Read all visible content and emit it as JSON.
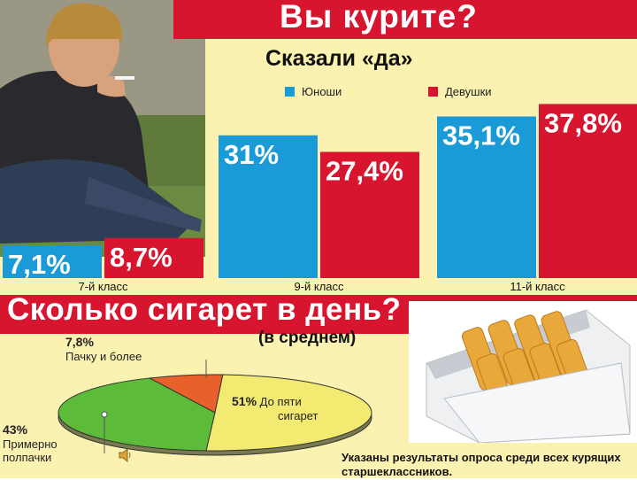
{
  "title": "Вы курите?",
  "subtitle": "Сказали «да»",
  "legend": {
    "boys": "Юноши",
    "girls": "Девушки"
  },
  "colors": {
    "boys": "#1b9ad8",
    "girls": "#d7152f",
    "banner": "#d7152f",
    "pie_green": "#5dbb3a",
    "pie_yellow": "#f3ea72",
    "pie_orange": "#e8612a"
  },
  "chart_data": [
    {
      "type": "bar",
      "title": "Вы курите?",
      "subtitle": "Сказали «да»",
      "categories": [
        "7-й класс",
        "9-й класс",
        "11-й класс"
      ],
      "series": [
        {
          "name": "Юноши",
          "values": [
            7.1,
            31,
            35.1
          ],
          "labels": [
            "7,1%",
            "31%",
            "35,1%"
          ]
        },
        {
          "name": "Девушки",
          "values": [
            8.7,
            27.4,
            37.8
          ],
          "labels": [
            "8,7%",
            "27,4%",
            "37,8%"
          ]
        }
      ]
    },
    {
      "type": "pie",
      "title": "Сколько сигарет в день?",
      "subtitle": "(в среднем)",
      "slices": [
        {
          "label": "До пяти сигарет",
          "value": 51,
          "text": "51%"
        },
        {
          "label": "Примерно полпачки",
          "value": 43,
          "text": "43%"
        },
        {
          "label": "Пачку и более",
          "value": 7.8,
          "text": "7,8%"
        }
      ],
      "note": "Указаны результаты опроса среди всех курящих старшеклассников."
    }
  ],
  "pie_texts": {
    "pct_51": "51%",
    "lbl_51a": "До пяти",
    "lbl_51b": "сигарет",
    "pct_43": "43%",
    "lbl_43a": "Примерно",
    "lbl_43b": "полпачки",
    "pct_78": "7,8%",
    "lbl_78": "Пачку и более"
  },
  "bottom_title": "Сколько сигарет в день?",
  "bottom_subtitle": "(в среднем)",
  "note": "Указаны результаты опроса среди всех курящих старшеклассников."
}
